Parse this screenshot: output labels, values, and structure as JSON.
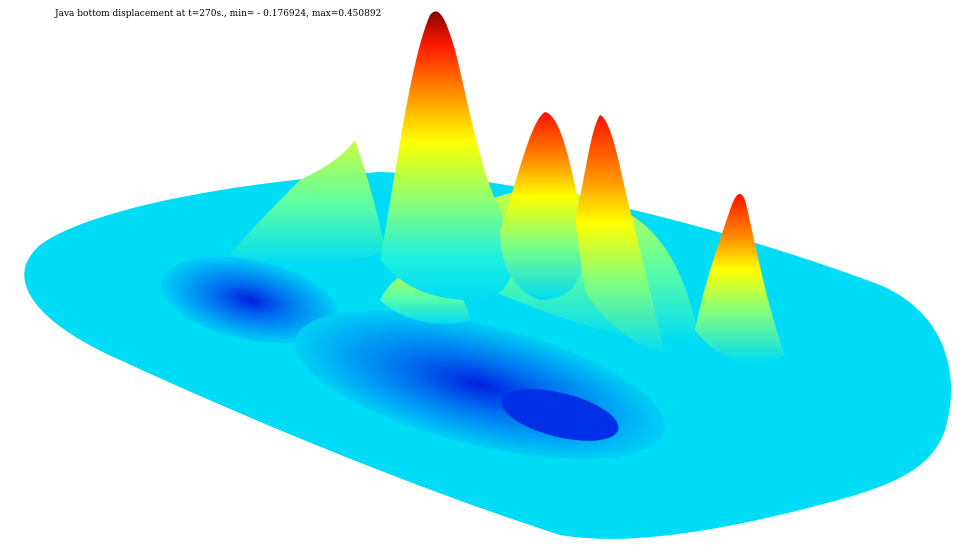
{
  "title": "Java bottom displacement at t=270s., min= - 0.176924, max=0.450892"
}
